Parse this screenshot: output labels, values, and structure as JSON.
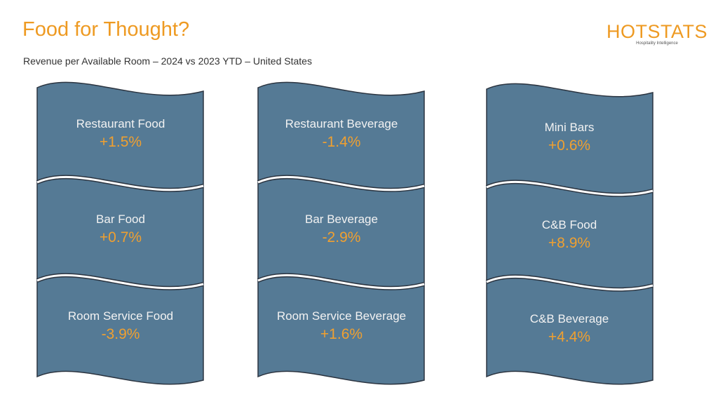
{
  "title": "Food for Thought?",
  "subtitle": "Revenue per Available Room – 2024 vs 2023 YTD – United States",
  "logo": {
    "text": "HOTSTATS",
    "tagline": "Hospitality Intelligence"
  },
  "colors": {
    "tile": "#557a95",
    "accent": "#ee9a22",
    "outline": "#2b3440"
  },
  "columns": [
    {
      "items": [
        {
          "label": "Restaurant Food",
          "value": "+1.5%"
        },
        {
          "label": "Bar Food",
          "value": "+0.7%"
        },
        {
          "label": "Room Service Food",
          "value": "-3.9%"
        }
      ]
    },
    {
      "items": [
        {
          "label": "Restaurant Beverage",
          "value": "-1.4%"
        },
        {
          "label": "Bar Beverage",
          "value": "-2.9%"
        },
        {
          "label": "Room Service Beverage",
          "value": "+1.6%"
        }
      ]
    },
    {
      "items": [
        {
          "label": "Mini Bars",
          "value": "+0.6%"
        },
        {
          "label": "C&B Food",
          "value": "+8.9%"
        },
        {
          "label": "C&B Beverage",
          "value": "+4.4%"
        }
      ]
    }
  ]
}
